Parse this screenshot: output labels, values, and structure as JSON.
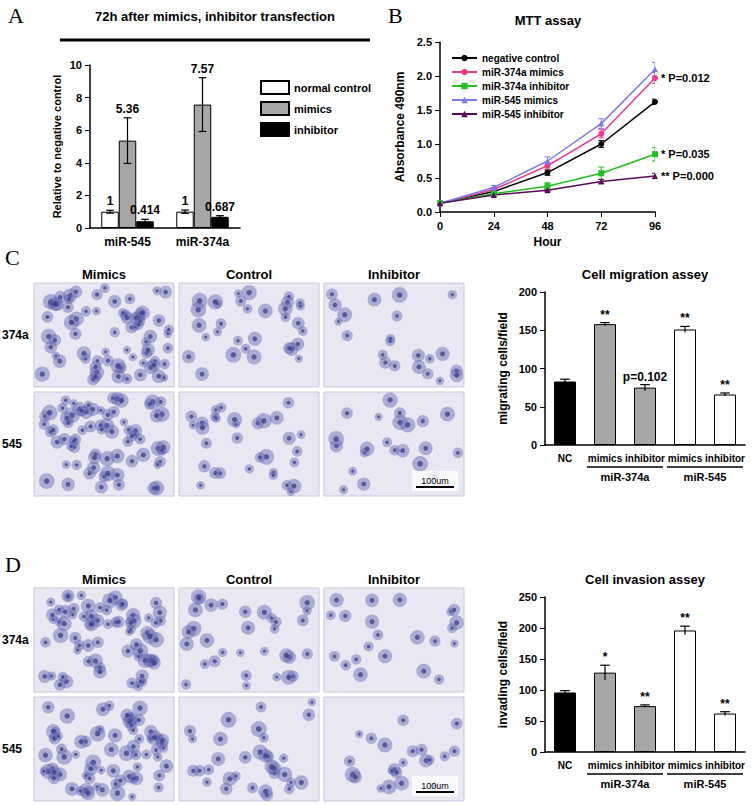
{
  "chart_data": [
    {
      "type": "bar",
      "annotations": [
        "A"
      ],
      "title": "72h after mimics, inhibitor transfection",
      "categories": [
        "miR-545",
        "miR-374a"
      ],
      "series": [
        {
          "name": "normal control",
          "color": "#ffffff",
          "values": [
            1,
            1
          ],
          "errors": [
            0.09,
            0.1
          ]
        },
        {
          "name": "mimics",
          "color": "#a6a6a6",
          "values": [
            5.36,
            7.57
          ],
          "errors": [
            1.4,
            1.65
          ]
        },
        {
          "name": "inhibitor",
          "color": "#000000",
          "values": [
            0.414,
            0.687
          ],
          "errors": [
            0.12,
            0.07
          ]
        }
      ],
      "y_label": "Relative to negative control",
      "ylim": [
        0,
        10
      ],
      "yticks": [
        0,
        2,
        4,
        6,
        8,
        10
      ],
      "data_labels": true,
      "legend": "right",
      "grid": false
    },
    {
      "type": "line",
      "annotations": [
        "B"
      ],
      "title": "MTT assay",
      "x": [
        0,
        24,
        48,
        72,
        96
      ],
      "xlim": [
        0,
        96
      ],
      "xticks": [
        0,
        24,
        48,
        72,
        96
      ],
      "x_label": "Hour",
      "y_label": "Absorbance 490nm",
      "ylim": [
        0,
        2.5
      ],
      "yticks": [
        {
          "value": 0,
          "label": "0.0"
        },
        0.5,
        {
          "value": 1,
          "label": "1.0"
        },
        1.5,
        {
          "value": 2,
          "label": "2.0"
        },
        2.5
      ],
      "legend": "upper left",
      "grid": false,
      "series": [
        {
          "name": "negative control",
          "color": "#000000",
          "marker": "circle",
          "values": [
            0.13,
            0.3,
            0.58,
            1.0,
            1.62
          ],
          "errors": [
            0.01,
            0.02,
            0.04,
            0.05,
            0.04
          ]
        },
        {
          "name": "miR-374a mimics",
          "color": "#ee3a8c",
          "marker": "circle",
          "values": [
            0.13,
            0.33,
            0.68,
            1.15,
            1.97
          ],
          "errors": [
            0.01,
            0.03,
            0.05,
            0.06,
            0.08
          ],
          "annotation": "* P=0.012"
        },
        {
          "name": "miR-374a inhibitor",
          "color": "#22c022",
          "marker": "square",
          "values": [
            0.13,
            0.27,
            0.38,
            0.57,
            0.85
          ],
          "errors": [
            0.01,
            0.02,
            0.05,
            0.09,
            0.1
          ],
          "annotation": "* P=0.035"
        },
        {
          "name": "miR-545 mimics",
          "color": "#7a7ae8",
          "marker": "triangle",
          "values": [
            0.13,
            0.36,
            0.75,
            1.3,
            2.1
          ],
          "errors": [
            0.01,
            0.03,
            0.06,
            0.07,
            0.1
          ]
        },
        {
          "name": "miR-545 inhibitor",
          "color": "#5c0a5c",
          "marker": "triangle",
          "values": [
            0.13,
            0.25,
            0.32,
            0.45,
            0.53
          ],
          "errors": [
            0.01,
            0.02,
            0.02,
            0.03,
            0.04
          ],
          "annotation": "** P=0.000"
        }
      ]
    },
    {
      "type": "bar",
      "title": "Cell migration assey",
      "categories": [
        "NC",
        "mimics",
        "inhibitor",
        "mimics",
        "inhibitor"
      ],
      "groups": [
        {
          "name": "miR-374a",
          "from": 1,
          "to": 2
        },
        {
          "name": "miR-545",
          "from": 3,
          "to": 4
        }
      ],
      "values": [
        83,
        158,
        75,
        151,
        66
      ],
      "errors": [
        3,
        2,
        4,
        4,
        2
      ],
      "colors": [
        "#000000",
        "#a6a6a6",
        "#a6a6a6",
        "#ffffff",
        "#ffffff"
      ],
      "significance": [
        null,
        "**",
        "p=0.102",
        "**",
        "**"
      ],
      "y_label": "migrating cells/field",
      "ylim": [
        0,
        200
      ],
      "yticks": [
        0,
        50,
        100,
        150,
        200
      ],
      "grid": false
    },
    {
      "type": "bar",
      "title": "Cell invasion assey",
      "categories": [
        "NC",
        "mimics",
        "inhibitor",
        "mimics",
        "inhibitor"
      ],
      "groups": [
        {
          "name": "miR-374a",
          "from": 1,
          "to": 2
        },
        {
          "name": "miR-545",
          "from": 3,
          "to": 4
        }
      ],
      "values": [
        96,
        128,
        74,
        196,
        62
      ],
      "errors": [
        3,
        12,
        2,
        7,
        3
      ],
      "colors": [
        "#000000",
        "#a6a6a6",
        "#a6a6a6",
        "#ffffff",
        "#ffffff"
      ],
      "significance": [
        null,
        "*",
        "**",
        "**",
        "**"
      ],
      "y_label": "invading cells/field",
      "ylim": [
        0,
        250
      ],
      "yticks": [
        0,
        50,
        100,
        150,
        200,
        250
      ],
      "grid": false
    }
  ],
  "images": [
    {
      "panel": "C",
      "columns": [
        "Mimics",
        "Control",
        "Inhibitor"
      ],
      "rows": [
        "374a",
        "545"
      ],
      "scale_bar": "100um"
    },
    {
      "panel": "D",
      "columns": [
        "Mimics",
        "Control",
        "Inhibitor"
      ],
      "rows": [
        "374a",
        "545"
      ],
      "scale_bar": "100um"
    }
  ]
}
